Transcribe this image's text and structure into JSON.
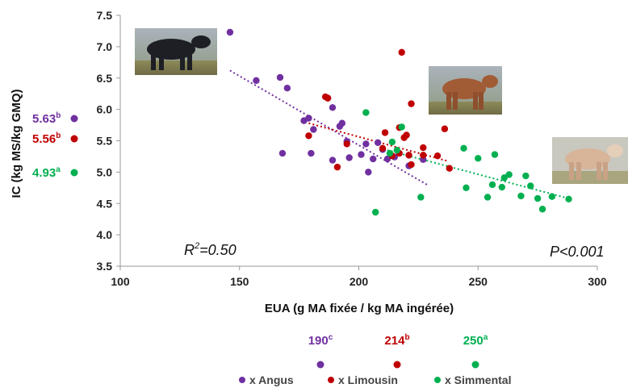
{
  "chart_data": {
    "type": "scatter",
    "xlabel": "EUA (g MA fixée / kg MA ingérée)",
    "ylabel": "IC (kg MS/kg GMQ)",
    "xlim": [
      100,
      300
    ],
    "ylim": [
      3.5,
      7.5
    ],
    "xticks": [
      100,
      150,
      200,
      250,
      300
    ],
    "yticks": [
      "3.5",
      "4.0",
      "4.5",
      "5.0",
      "5.5",
      "6.0",
      "6.5",
      "7.0",
      "7.5"
    ],
    "grid": false,
    "legend_position": "bottom",
    "annotations": {
      "r2_base": "R",
      "r2_exp": "2",
      "r2_rest": "=0.50",
      "p_value": "P<0.001"
    },
    "series": [
      {
        "name": "x Angus",
        "color": "#7030a0",
        "mean_ic": "5.63",
        "mean_ic_sup": "b",
        "mean_eua": "190",
        "mean_eua_sup": "c",
        "trend": [
          [
            146,
            6.62
          ],
          [
            229,
            4.79
          ]
        ],
        "points": [
          [
            146,
            7.23
          ],
          [
            157,
            6.46
          ],
          [
            167,
            6.51
          ],
          [
            170,
            6.34
          ],
          [
            168,
            5.3
          ],
          [
            177,
            5.82
          ],
          [
            179,
            5.86
          ],
          [
            180,
            5.3
          ],
          [
            181,
            5.68
          ],
          [
            187,
            6.18
          ],
          [
            189,
            6.03
          ],
          [
            192,
            5.73
          ],
          [
            193,
            5.78
          ],
          [
            189,
            5.19
          ],
          [
            196,
            5.23
          ],
          [
            195,
            5.49
          ],
          [
            201,
            5.28
          ],
          [
            203,
            5.45
          ],
          [
            204,
            5.0
          ],
          [
            206,
            5.21
          ],
          [
            208,
            5.47
          ],
          [
            210,
            5.36
          ],
          [
            212,
            5.21
          ],
          [
            215,
            5.24
          ],
          [
            221,
            5.1
          ],
          [
            227,
            5.2
          ]
        ]
      },
      {
        "name": "x Limousin",
        "color": "#c00000",
        "mean_ic": "5.56",
        "mean_ic_sup": "b",
        "mean_eua": "214",
        "mean_eua_sup": "b",
        "trend": [
          [
            179,
            5.78
          ],
          [
            237,
            5.18
          ]
        ],
        "points": [
          [
            186,
            6.2
          ],
          [
            187,
            6.18
          ],
          [
            179,
            5.58
          ],
          [
            191,
            5.08
          ],
          [
            195,
            5.45
          ],
          [
            210,
            5.38
          ],
          [
            211,
            5.63
          ],
          [
            214,
            5.26
          ],
          [
            217,
            5.71
          ],
          [
            217,
            5.3
          ],
          [
            218,
            6.91
          ],
          [
            219,
            5.55
          ],
          [
            220,
            5.59
          ],
          [
            221,
            5.27
          ],
          [
            222,
            6.09
          ],
          [
            222,
            5.12
          ],
          [
            227,
            5.39
          ],
          [
            227,
            5.27
          ],
          [
            233,
            5.26
          ],
          [
            236,
            5.69
          ],
          [
            238,
            5.06
          ]
        ]
      },
      {
        "name": "x Simmental",
        "color": "#00b050",
        "mean_ic": "4.93",
        "mean_ic_sup": "a",
        "mean_eua": "250",
        "mean_eua_sup": "a",
        "trend": [
          [
            212,
            5.35
          ],
          [
            288,
            4.58
          ]
        ],
        "points": [
          [
            203,
            5.95
          ],
          [
            207,
            4.36
          ],
          [
            213,
            5.3
          ],
          [
            214,
            5.48
          ],
          [
            216,
            5.35
          ],
          [
            218,
            5.72
          ],
          [
            226,
            4.6
          ],
          [
            244,
            5.38
          ],
          [
            245,
            4.75
          ],
          [
            250,
            5.22
          ],
          [
            254,
            4.6
          ],
          [
            257,
            5.28
          ],
          [
            256,
            4.8
          ],
          [
            260,
            4.76
          ],
          [
            261,
            4.91
          ],
          [
            263,
            4.96
          ],
          [
            268,
            4.62
          ],
          [
            270,
            4.94
          ],
          [
            272,
            4.78
          ],
          [
            275,
            4.58
          ],
          [
            277,
            4.41
          ],
          [
            281,
            4.61
          ],
          [
            288,
            4.57
          ]
        ]
      }
    ]
  }
}
